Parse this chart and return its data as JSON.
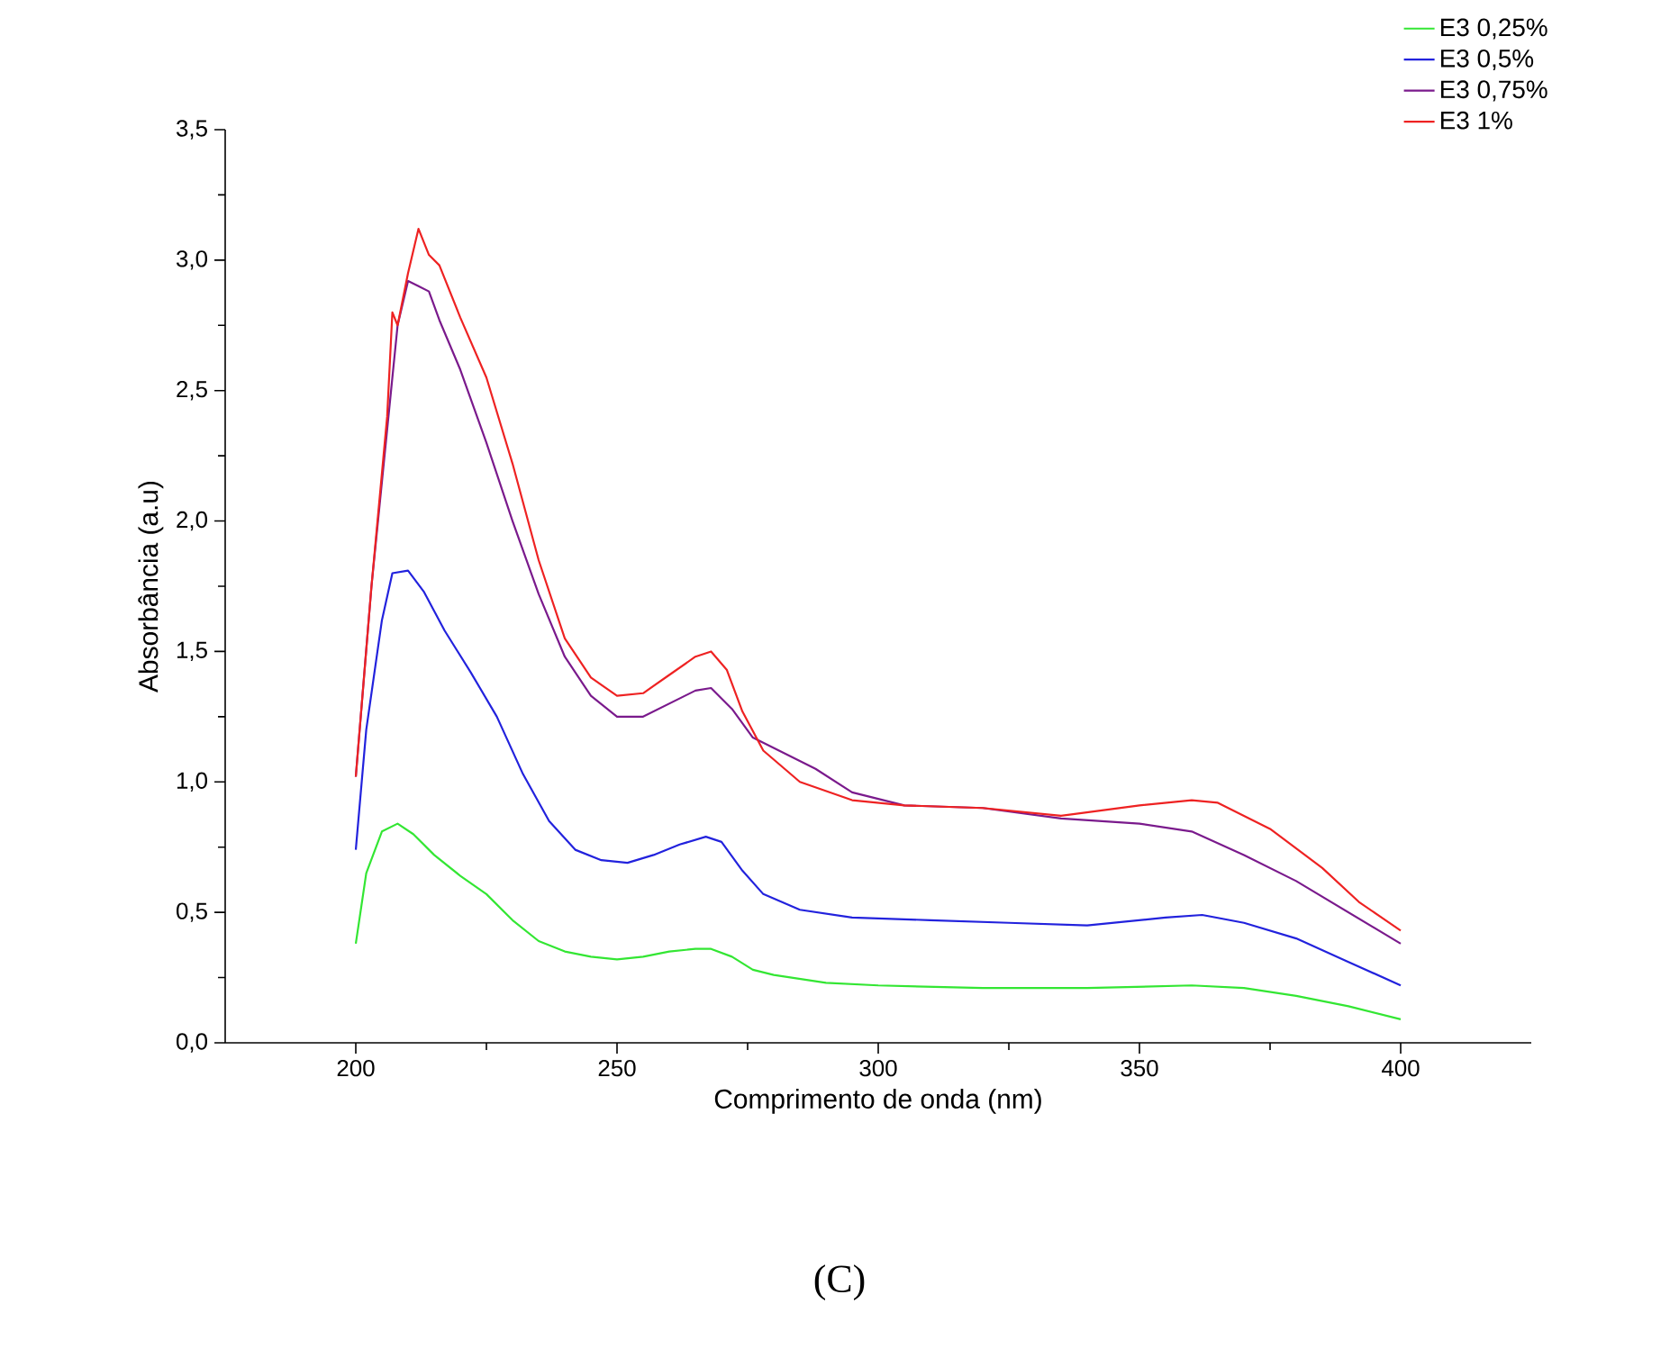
{
  "chart_data": {
    "type": "line",
    "xlabel": "Comprimento de onda (nm)",
    "ylabel": "Absorbância (a.u)",
    "xlim": [
      175,
      425
    ],
    "xticks": [
      200,
      250,
      300,
      350,
      400
    ],
    "ylim": [
      0,
      3.5
    ],
    "yticks": [
      {
        "value": 0,
        "label": "0,0"
      },
      {
        "value": 0.5,
        "label": "0,5"
      },
      {
        "value": 1,
        "label": "1,0"
      },
      {
        "value": 1.5,
        "label": "1,5"
      },
      {
        "value": 2,
        "label": "2,0"
      },
      {
        "value": 2.5,
        "label": "2,5"
      },
      {
        "value": 3,
        "label": "3,0"
      },
      {
        "value": 3.5,
        "label": "3,5"
      }
    ],
    "grid": false,
    "legend": "top right",
    "marker": "none",
    "line_style": "solid",
    "annotations": [
      "(C)"
    ],
    "series": [
      {
        "name": "E3 0,25%",
        "color": "#33e633",
        "x": [
          200,
          202,
          205,
          208,
          211,
          215,
          220,
          225,
          230,
          235,
          240,
          245,
          250,
          255,
          260,
          265,
          268,
          272,
          276,
          280,
          290,
          300,
          320,
          340,
          360,
          370,
          380,
          390,
          400
        ],
        "values": [
          0.38,
          0.65,
          0.81,
          0.84,
          0.8,
          0.72,
          0.64,
          0.57,
          0.47,
          0.39,
          0.35,
          0.33,
          0.32,
          0.33,
          0.35,
          0.36,
          0.36,
          0.33,
          0.28,
          0.26,
          0.23,
          0.22,
          0.21,
          0.21,
          0.22,
          0.21,
          0.18,
          0.14,
          0.09
        ]
      },
      {
        "name": "E3 0,5%",
        "color": "#2222dd",
        "x": [
          200,
          202,
          205,
          207,
          210,
          213,
          217,
          222,
          227,
          232,
          237,
          242,
          247,
          252,
          257,
          262,
          267,
          270,
          274,
          278,
          285,
          295,
          310,
          325,
          340,
          355,
          362,
          370,
          380,
          390,
          400
        ],
        "values": [
          0.74,
          1.2,
          1.62,
          1.8,
          1.81,
          1.73,
          1.58,
          1.42,
          1.25,
          1.03,
          0.85,
          0.74,
          0.7,
          0.69,
          0.72,
          0.76,
          0.79,
          0.77,
          0.66,
          0.57,
          0.51,
          0.48,
          0.47,
          0.46,
          0.45,
          0.48,
          0.49,
          0.46,
          0.4,
          0.31,
          0.22
        ]
      },
      {
        "name": "E3 0,75%",
        "color": "#7a1a8c",
        "x": [
          200,
          203,
          206,
          208,
          210,
          212,
          214,
          216,
          220,
          225,
          230,
          235,
          240,
          245,
          250,
          255,
          260,
          265,
          268,
          272,
          276,
          282,
          288,
          295,
          305,
          320,
          335,
          350,
          360,
          370,
          380,
          390,
          400
        ],
        "values": [
          1.02,
          1.75,
          2.35,
          2.75,
          2.92,
          2.9,
          2.88,
          2.77,
          2.58,
          2.3,
          2.0,
          1.72,
          1.48,
          1.33,
          1.25,
          1.25,
          1.3,
          1.35,
          1.36,
          1.28,
          1.17,
          1.11,
          1.05,
          0.96,
          0.91,
          0.9,
          0.86,
          0.84,
          0.81,
          0.72,
          0.62,
          0.5,
          0.38
        ]
      },
      {
        "name": "E3 1%",
        "color": "#ee2222",
        "x": [
          200,
          203,
          206,
          207,
          208,
          210,
          212,
          214,
          216,
          220,
          225,
          230,
          235,
          240,
          245,
          250,
          255,
          260,
          265,
          268,
          271,
          274,
          278,
          285,
          295,
          305,
          320,
          335,
          350,
          360,
          365,
          375,
          385,
          392,
          400
        ],
        "values": [
          1.02,
          1.75,
          2.4,
          2.8,
          2.75,
          2.95,
          3.12,
          3.02,
          2.98,
          2.78,
          2.55,
          2.22,
          1.85,
          1.55,
          1.4,
          1.33,
          1.34,
          1.41,
          1.48,
          1.5,
          1.43,
          1.27,
          1.12,
          1.0,
          0.93,
          0.91,
          0.9,
          0.87,
          0.91,
          0.93,
          0.92,
          0.82,
          0.67,
          0.54,
          0.43
        ]
      }
    ]
  }
}
